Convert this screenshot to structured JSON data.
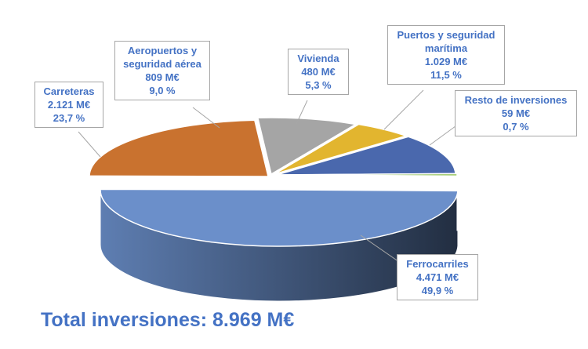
{
  "chart_data": {
    "type": "pie",
    "title": "",
    "categories": [
      "Ferrocarriles",
      "Carreteras",
      "Aeropuertos y seguridad aérea",
      "Vivienda",
      "Puertos y seguridad marítima",
      "Resto de inversiones"
    ],
    "values": [
      4471,
      2121,
      809,
      480,
      1029,
      59
    ],
    "value_labels": [
      "4.471 M€",
      "2.121 M€",
      "809 M€",
      "480 M€",
      "1.029 M€",
      "59 M€"
    ],
    "percent_labels": [
      "49,9 %",
      "23,7 %",
      "9,0 %",
      "5,3 %",
      "11,5 %",
      "0,7 %"
    ],
    "colors": [
      "#6b8fca",
      "#c9722f",
      "#a5a5a5",
      "#e2b52f",
      "#4a68ad",
      "#8cbf4e"
    ],
    "unit": "M€",
    "style": "3d-exploded"
  },
  "labels": [
    {
      "name": "ferrocarriles",
      "lines": [
        "Ferrocarriles",
        "4.471 M€",
        "49,9 %"
      ]
    },
    {
      "name": "carreteras",
      "lines": [
        "Carreteras",
        "2.121 M€",
        "23,7 %"
      ]
    },
    {
      "name": "aeropuertos",
      "lines": [
        "Aeropuertos y",
        "seguridad aérea",
        "809 M€",
        "9,0 %"
      ]
    },
    {
      "name": "vivienda",
      "lines": [
        "Vivienda",
        "480 M€",
        "5,3 %"
      ]
    },
    {
      "name": "puertos",
      "lines": [
        "Puertos y seguridad",
        "marítima",
        "1.029 M€",
        "11,5 %"
      ]
    },
    {
      "name": "resto",
      "lines": [
        "Resto de inversiones",
        "59 M€",
        "0,7 %"
      ]
    }
  ],
  "total": {
    "text": "Total inversiones: 8.969 M€"
  }
}
